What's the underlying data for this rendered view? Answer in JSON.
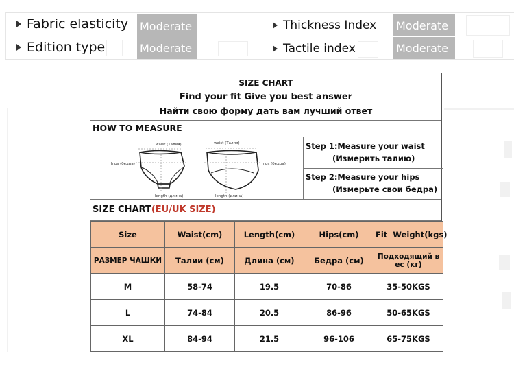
{
  "attributes": [
    {
      "label": "Fabric elasticity",
      "value": "Moderate"
    },
    {
      "label": "Edition type",
      "value": "Moderate"
    },
    {
      "label": "Thickness Index",
      "value": "Moderate"
    },
    {
      "label": "Tactile index",
      "value": "Moderate"
    }
  ],
  "chart": {
    "title": "SIZE CHART",
    "subtitle_en": "Find your fit Give you best answer",
    "subtitle_ru": "Найти свою форму дать вам лучший ответ",
    "how_to_measure": "HOW TO MEASURE",
    "illustration": {
      "front_waist": "waist (Талия)",
      "front_hips": "hips (бедра)",
      "front_length": "length (длина)",
      "back_waist": "waist (Талия)",
      "back_hips": "hips (бедра)",
      "back_length": "length (длина)"
    },
    "steps": [
      {
        "line1": "Step 1:Measure your waist",
        "line2": "(Измерить талию)"
      },
      {
        "line1": "Step 2:Measure your hips",
        "line2": "(Измерьте свои бедра)"
      }
    ],
    "size_chart_label": "SIZE CHART",
    "size_chart_sub": "(EU/UK SIZE)",
    "header_en": [
      "Size",
      "Waist(cm)",
      "Length(cm)",
      "Hips(cm)",
      "Fit  Weight(kgs)"
    ],
    "header_ru": [
      "РАЗМЕР ЧАШКИ",
      "Талии (см)",
      "Длина (см)",
      "Бедра (см)",
      "Подходящий в ес (кг)"
    ],
    "rows": [
      [
        "M",
        "58-74",
        "19.5",
        "70-86",
        "35-50KGS"
      ],
      [
        "L",
        "74-84",
        "20.5",
        "86-96",
        "50-65KGS"
      ],
      [
        "XL",
        "84-94",
        "21.5",
        "96-106",
        "65-75KGS"
      ]
    ]
  },
  "colors": {
    "header_fill": "#f5c29e",
    "value_fill": "#b7b7b7",
    "accent_red": "#c0392b"
  }
}
